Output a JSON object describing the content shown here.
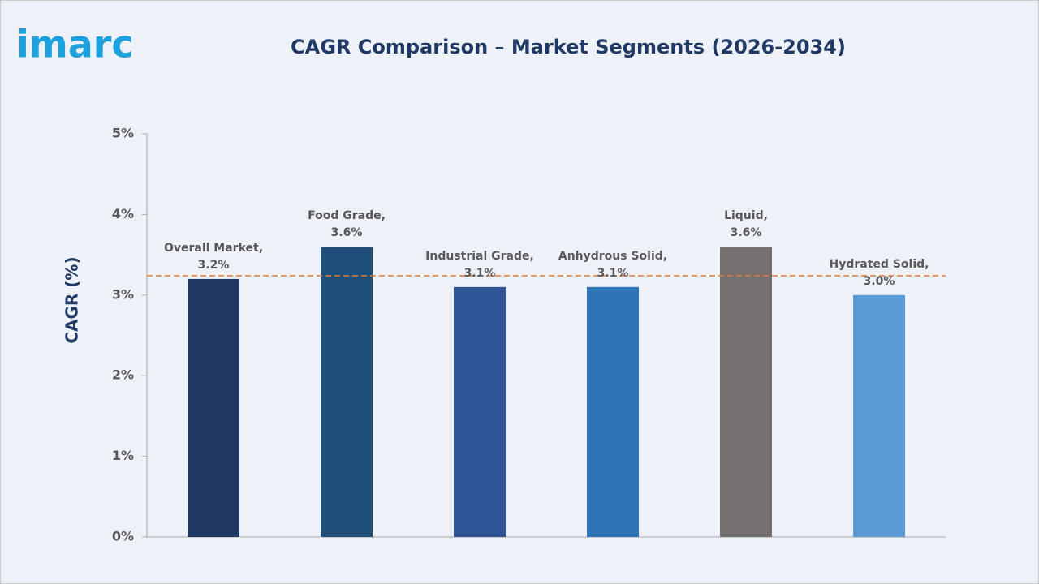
{
  "logo": "imarc",
  "chart_data": {
    "type": "bar",
    "title": "CAGR Comparison – Market Segments (2026-2034)",
    "y_label": "CAGR (%)",
    "categories": [
      "Overall Market,",
      "Food Grade,",
      "Industrial Grade,",
      "Anhydrous Solid,",
      "Liquid,",
      "Hydrated Solid,"
    ],
    "values": [
      3.2,
      3.6,
      3.1,
      3.1,
      3.6,
      3.0
    ],
    "value_labels": [
      "3.2%",
      "3.6%",
      "3.1%",
      "3.1%",
      "3.6%",
      "3.0%"
    ],
    "colors": [
      "#203864",
      "#1f4e79",
      "#2f5597",
      "#2e75b6",
      "#767171",
      "#5b9bd5"
    ],
    "reference_line": 3.24,
    "reference_color": "#e07b39",
    "ylim": [
      0,
      5
    ],
    "yticks": [
      {
        "value": 0,
        "label": "0%"
      },
      {
        "value": 1,
        "label": "1%"
      },
      {
        "value": 2,
        "label": "2%"
      },
      {
        "value": 3,
        "label": "3%"
      },
      {
        "value": 4,
        "label": "4%"
      },
      {
        "value": 5,
        "label": "5%"
      }
    ],
    "grid": false
  }
}
